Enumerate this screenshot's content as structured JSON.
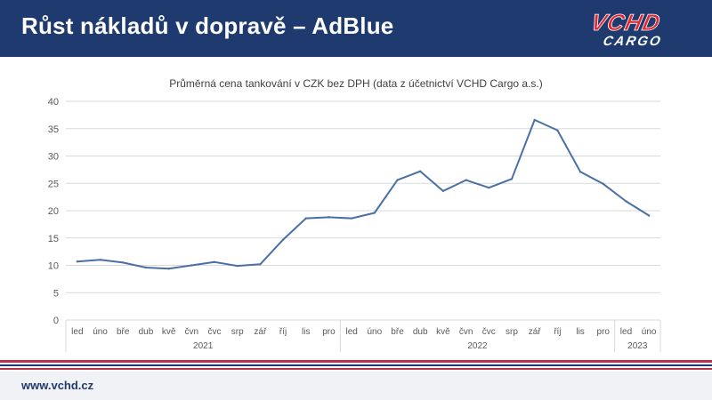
{
  "header": {
    "title": "Růst nákladů v dopravě – AdBlue",
    "logo_line1": "VCHD",
    "logo_line2": "CARGO"
  },
  "footer": {
    "url": "www.vchd.cz"
  },
  "colors": {
    "header_bg": "#1e3a6e",
    "logo_red": "#e0262f",
    "series_line": "#4a6fa5",
    "stripe_red": "#b8324a",
    "stripe_blue": "#1e3a6e"
  },
  "chart_data": {
    "type": "line",
    "title": "Průměrná cena tankování v CZK bez DPH (data z účetnictví VCHD Cargo a.s.)",
    "xlabel": "",
    "ylabel": "",
    "ylim": [
      0,
      40
    ],
    "yticks": [
      0,
      5,
      10,
      15,
      20,
      25,
      30,
      35,
      40
    ],
    "grid": true,
    "categories": [
      "led",
      "úno",
      "bře",
      "dub",
      "kvě",
      "čvn",
      "čvc",
      "srp",
      "zář",
      "říj",
      "lis",
      "pro",
      "led",
      "úno",
      "bře",
      "dub",
      "kvě",
      "čvn",
      "čvc",
      "srp",
      "zář",
      "říj",
      "lis",
      "pro",
      "led",
      "úno"
    ],
    "groups": [
      {
        "label": "2021",
        "count": 12
      },
      {
        "label": "2022",
        "count": 12
      },
      {
        "label": "2023",
        "count": 2
      }
    ],
    "series": [
      {
        "name": "Průměrná cena",
        "values": [
          10.7,
          11.0,
          10.5,
          9.6,
          9.4,
          10.0,
          10.6,
          9.9,
          10.2,
          14.7,
          18.6,
          18.8,
          18.6,
          19.6,
          25.6,
          27.2,
          23.6,
          25.6,
          24.2,
          25.8,
          36.6,
          34.7,
          27.1,
          24.9,
          21.7,
          19.1
        ]
      }
    ]
  }
}
